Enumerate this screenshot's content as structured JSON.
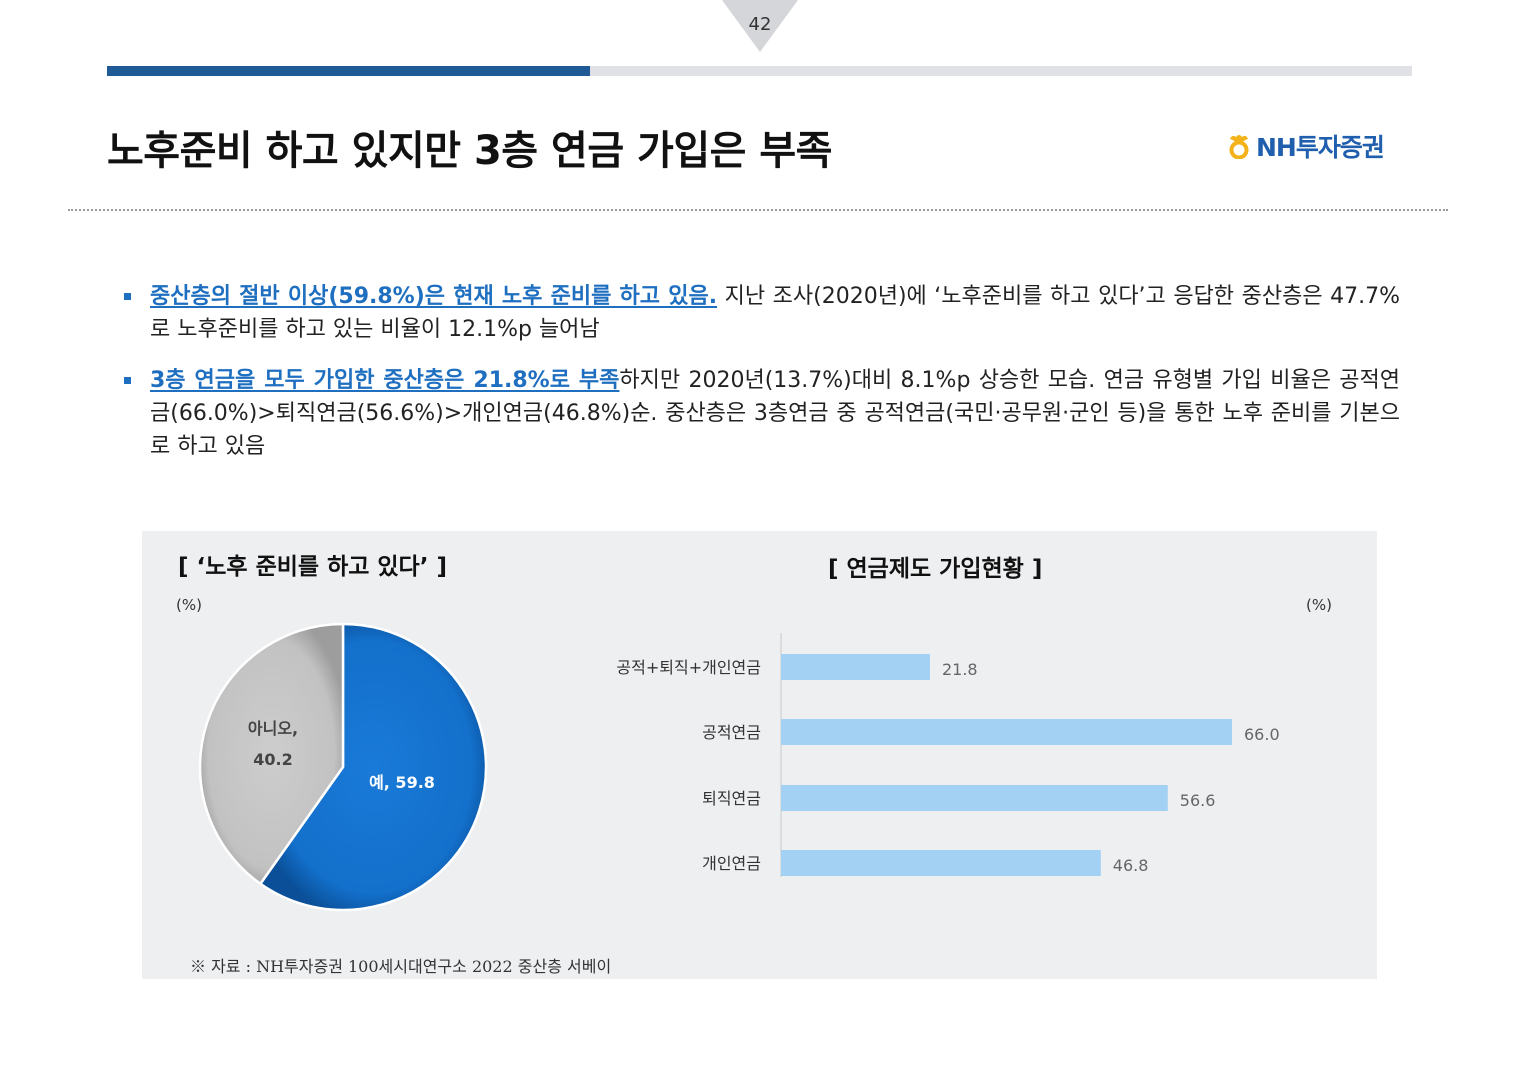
{
  "page": {
    "number": "42"
  },
  "header": {
    "title": "노후준비 하고 있지만 3층 연금 가입은 부족",
    "logo_text": "NH투자증권"
  },
  "bullets": [
    {
      "highlight": "중산층의 절반 이상(59.8%)은 현재 노후 준비를 하고 있음.",
      "text": " 지난 조사(2020년)에 ‘노후준비를 하고 있다’고 응답한 중산층은 47.7%로 노후준비를 하고 있는 비율이 12.1%p 늘어남"
    },
    {
      "highlight": "3층 연금을 모두 가입한 중산층은 21.8%로 부족",
      "text": "하지만 2020년(13.7%)대비 8.1%p 상승한 모습. 연금 유형별 가입 비율은 공적연금(66.0%)>퇴직연금(56.6%)>개인연금(46.8%)순. 중산층은 3층연금 중 공적연금(국민·공무원·군인 등)을 통한 노후 준비를 기본으로 하고 있음"
    }
  ],
  "chart_data": [
    {
      "type": "pie",
      "title": "[ ‘노후 준비를 하고 있다’ ]",
      "unit": "(%)",
      "slices": [
        {
          "label": "예",
          "value": 59.8,
          "display": "예, 59.8",
          "color": "#1572cc"
        },
        {
          "label": "아니오",
          "value": 40.2,
          "display_line1": "아니오,",
          "display_line2": "40.2",
          "color": "#c4c4c4"
        }
      ]
    },
    {
      "type": "bar",
      "orientation": "horizontal",
      "title": "[ 연금제도 가입현황 ]",
      "unit": "(%)",
      "categories": [
        "공적+퇴직+개인연금",
        "공적연금",
        "퇴직연금",
        "개인연금"
      ],
      "values": [
        21.8,
        66.0,
        56.6,
        46.8
      ],
      "value_labels": [
        "21.8",
        "66.0",
        "56.6",
        "46.8"
      ],
      "color": "#a3d1f4"
    }
  ],
  "source": "※ 자료 : NH투자증권 100세시대연구소 2022 중산층 서베이"
}
